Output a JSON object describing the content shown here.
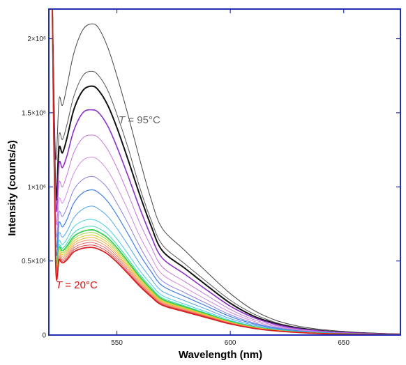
{
  "chart_data": {
    "type": "line",
    "xlabel": "Wavelength (nm)",
    "ylabel": "Intensity (counts/s)",
    "xlim": [
      520,
      675
    ],
    "ylim": [
      0,
      2200000
    ],
    "x_ticks": [
      550,
      600,
      650
    ],
    "x_tick_labels": [
      "550",
      "600",
      "650"
    ],
    "y_ticks": [
      0,
      500000,
      1000000,
      1500000,
      2000000
    ],
    "y_tick_labels": [
      "0",
      "0.5×10⁶",
      "1×10⁶",
      "1.5×10⁶",
      "2×10⁶"
    ],
    "frame_color": "#1f2fb0",
    "annotations": [
      {
        "text_italic": "T",
        "text": " = 95°C",
        "color": "#666666"
      },
      {
        "text_italic": "T",
        "text": " = 20°C",
        "color": "#cc1111"
      }
    ],
    "x": [
      521.5,
      523,
      524.5,
      526,
      528,
      531,
      535,
      539,
      542,
      546,
      550,
      555,
      560,
      565,
      570,
      580,
      590,
      600,
      610,
      620,
      630,
      640,
      650,
      660,
      670,
      675
    ],
    "series": [
      {
        "color": "#444444",
        "width": 1.0,
        "values": [
          2250000,
          1200000,
          1590000,
          1550000,
          1680000,
          1900000,
          2060000,
          2100000,
          2070000,
          1940000,
          1750000,
          1480000,
          1190000,
          920000,
          720000,
          570000,
          420000,
          280000,
          170000,
          100000,
          60000,
          38000,
          24000,
          15000,
          9000,
          7000
        ]
      },
      {
        "color": "#555555",
        "width": 1.0,
        "values": [
          2250000,
          1000000,
          1350000,
          1320000,
          1420000,
          1610000,
          1750000,
          1780000,
          1750000,
          1650000,
          1490000,
          1260000,
          1000000,
          780000,
          610000,
          480000,
          355000,
          235000,
          145000,
          85000,
          51000,
          32000,
          20000,
          13000,
          8000,
          6000
        ]
      },
      {
        "color": "#111111",
        "width": 2.0,
        "values": [
          2250000,
          950000,
          1260000,
          1230000,
          1330000,
          1520000,
          1650000,
          1680000,
          1650000,
          1550000,
          1400000,
          1180000,
          950000,
          740000,
          570000,
          450000,
          330000,
          215000,
          130000,
          78000,
          47000,
          29000,
          18000,
          12000,
          7000,
          5500
        ]
      },
      {
        "color": "#8e2fc7",
        "width": 1.6,
        "values": [
          2250000,
          880000,
          1160000,
          1130000,
          1210000,
          1380000,
          1500000,
          1520000,
          1500000,
          1410000,
          1270000,
          1070000,
          860000,
          670000,
          520000,
          410000,
          300000,
          195000,
          120000,
          72000,
          43000,
          27000,
          17000,
          11000,
          7000,
          5000
        ]
      },
      {
        "color": "#c274d8",
        "width": 1.0,
        "values": [
          2250000,
          800000,
          1030000,
          1000000,
          1080000,
          1230000,
          1330000,
          1350000,
          1330000,
          1250000,
          1130000,
          950000,
          760000,
          600000,
          460000,
          360000,
          265000,
          173000,
          106000,
          64000,
          38000,
          24000,
          15000,
          10000,
          6000,
          4500
        ]
      },
      {
        "color": "#d28be0",
        "width": 1.0,
        "values": [
          2250000,
          730000,
          920000,
          890000,
          960000,
          1090000,
          1180000,
          1200000,
          1180000,
          1110000,
          1000000,
          840000,
          670000,
          530000,
          410000,
          320000,
          235000,
          154000,
          95000,
          57000,
          34000,
          21000,
          13000,
          9000,
          6000,
          4000
        ]
      },
      {
        "color": "#8a7fe0",
        "width": 1.0,
        "values": [
          2250000,
          670000,
          830000,
          800000,
          860000,
          980000,
          1050000,
          1070000,
          1050000,
          990000,
          890000,
          750000,
          600000,
          470000,
          365000,
          285000,
          210000,
          137000,
          84000,
          51000,
          30000,
          19000,
          12000,
          8000,
          5000,
          4000
        ]
      },
      {
        "color": "#3f7fe6",
        "width": 1.2,
        "values": [
          2250000,
          620000,
          760000,
          730000,
          780000,
          890000,
          960000,
          980000,
          960000,
          900000,
          810000,
          680000,
          545000,
          430000,
          333000,
          260000,
          192000,
          125000,
          77000,
          46000,
          28000,
          17000,
          11000,
          7000,
          5000,
          3500
        ]
      },
      {
        "color": "#4fa6ee",
        "width": 1.0,
        "values": [
          2250000,
          580000,
          690000,
          660000,
          700000,
          790000,
          850000,
          870000,
          850000,
          800000,
          720000,
          605000,
          485000,
          382000,
          296000,
          231000,
          171000,
          111000,
          68000,
          41000,
          25000,
          15000,
          10000,
          6500,
          4500,
          3200
        ]
      },
      {
        "color": "#46cde4",
        "width": 1.0,
        "values": [
          2250000,
          560000,
          640000,
          610000,
          650000,
          730000,
          770000,
          780000,
          765000,
          720000,
          650000,
          545000,
          437000,
          344000,
          267000,
          208000,
          154000,
          100000,
          61000,
          37000,
          22000,
          14000,
          9000,
          6000,
          4000,
          3000
        ]
      },
      {
        "color": "#35d9b5",
        "width": 1.0,
        "values": [
          2250000,
          545000,
          610000,
          585000,
          620000,
          690000,
          725000,
          735000,
          720000,
          680000,
          610000,
          513000,
          411000,
          324000,
          251000,
          196000,
          145000,
          94000,
          58000,
          35000,
          21000,
          13000,
          8500,
          5500,
          4000,
          3000
        ]
      },
      {
        "color": "#35cc52",
        "width": 1.8,
        "values": [
          2250000,
          535000,
          595000,
          570000,
          600000,
          665000,
          700000,
          710000,
          695000,
          655000,
          590000,
          495000,
          397000,
          312000,
          242000,
          189000,
          140000,
          91000,
          56000,
          34000,
          20000,
          12500,
          8000,
          5500,
          4000,
          3000
        ]
      },
      {
        "color": "#9bd53a",
        "width": 1.0,
        "values": [
          2250000,
          528000,
          580000,
          555000,
          585000,
          650000,
          683000,
          692000,
          678000,
          639000,
          575000,
          483000,
          387000,
          304000,
          236000,
          184000,
          136000,
          88000,
          54000,
          33000,
          20000,
          12000,
          8000,
          5000,
          3500,
          2800
        ]
      },
      {
        "color": "#dfd23a",
        "width": 1.2,
        "values": [
          2250000,
          522000,
          567000,
          542000,
          571000,
          634000,
          666000,
          675000,
          661000,
          623000,
          561000,
          471000,
          378000,
          297000,
          230000,
          180000,
          133000,
          86000,
          53000,
          32000,
          19000,
          12000,
          7500,
          5000,
          3500,
          2700
        ]
      },
      {
        "color": "#f3b040",
        "width": 1.0,
        "values": [
          2250000,
          516000,
          555000,
          530000,
          558000,
          619000,
          650000,
          658000,
          645000,
          608000,
          547000,
          460000,
          369000,
          290000,
          225000,
          175000,
          130000,
          84000,
          52000,
          31000,
          19000,
          11500,
          7500,
          5000,
          3500,
          2600
        ]
      },
      {
        "color": "#f49058",
        "width": 1.0,
        "values": [
          2250000,
          510000,
          543000,
          518000,
          545000,
          604000,
          634000,
          641000,
          628000,
          592000,
          533000,
          448000,
          359000,
          282000,
          219000,
          171000,
          126000,
          82000,
          50000,
          30000,
          18000,
          11000,
          7000,
          4800,
          3400,
          2500
        ]
      },
      {
        "color": "#ec6a6a",
        "width": 1.0,
        "values": [
          2250000,
          505000,
          532000,
          507000,
          532000,
          589000,
          617000,
          624000,
          611000,
          576000,
          519000,
          436000,
          349000,
          274000,
          213000,
          166000,
          123000,
          80000,
          49000,
          29000,
          18000,
          11000,
          7000,
          4600,
          3300,
          2400
        ]
      },
      {
        "color": "#e04545",
        "width": 1.0,
        "values": [
          2250000,
          500000,
          521000,
          497000,
          520000,
          575000,
          601000,
          607000,
          595000,
          561000,
          505000,
          424000,
          340000,
          267000,
          207000,
          162000,
          120000,
          77000,
          47000,
          28000,
          17000,
          10500,
          6800,
          4500,
          3200,
          2400
        ]
      },
      {
        "color": "#d42020",
        "width": 1.8,
        "values": [
          2250000,
          495000,
          510000,
          487000,
          508000,
          561000,
          586000,
          591000,
          579000,
          546000,
          492000,
          413000,
          331000,
          260000,
          202000,
          157000,
          116000,
          75000,
          46000,
          28000,
          17000,
          10000,
          6500,
          4400,
          3100,
          2300
        ]
      }
    ]
  }
}
